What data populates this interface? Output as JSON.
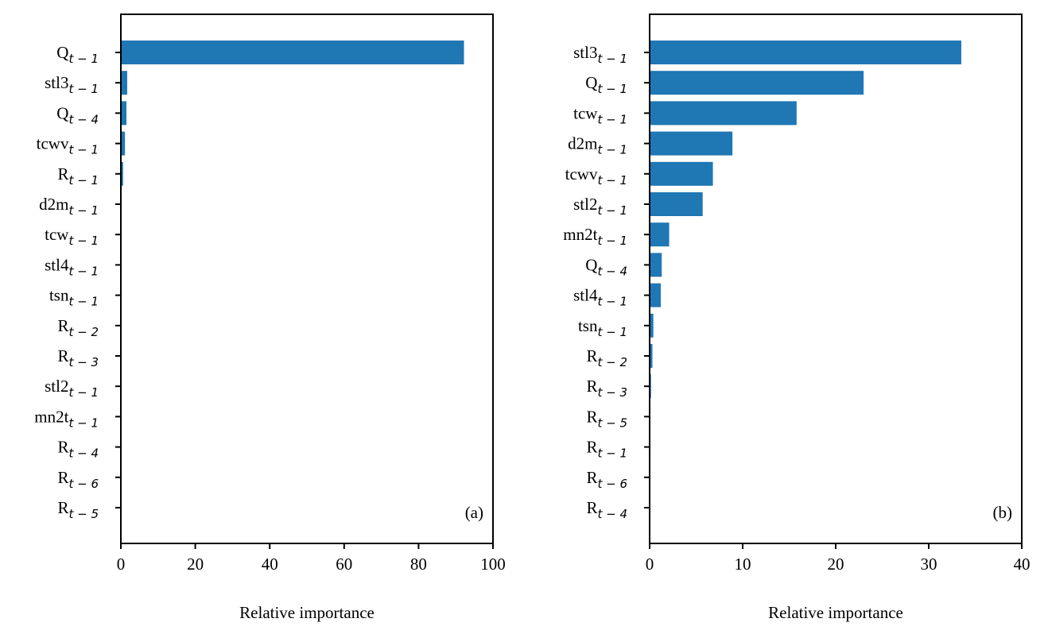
{
  "chart_data": [
    {
      "type": "bar",
      "orientation": "horizontal",
      "color": "#1f77b4",
      "categories": [
        [
          "Q",
          "t − 1"
        ],
        [
          "stl3",
          "t − 1"
        ],
        [
          "Q",
          "t − 4"
        ],
        [
          "tcwv",
          "t − 1"
        ],
        [
          "R",
          "t − 1"
        ],
        [
          "d2m",
          "t − 1"
        ],
        [
          "tcw",
          "t − 1"
        ],
        [
          "stl4",
          "t − 1"
        ],
        [
          "tsn",
          "t − 1"
        ],
        [
          "R",
          "t − 2"
        ],
        [
          "R",
          "t − 3"
        ],
        [
          "stl2",
          "t − 1"
        ],
        [
          "mn2t",
          "t − 1"
        ],
        [
          "R",
          "t − 4"
        ],
        [
          "R",
          "t − 6"
        ],
        [
          "R",
          "t − 5"
        ]
      ],
      "values": [
        92.2,
        1.7,
        1.5,
        1.1,
        0.6,
        0.2,
        0.1,
        0.1,
        0.1,
        0,
        0,
        0,
        0,
        0,
        0,
        0
      ],
      "xlim": [
        0,
        100
      ],
      "xticks": [
        0,
        20,
        40,
        60,
        80,
        100
      ],
      "xlabel": "Relative importance",
      "annotation": "(a)"
    },
    {
      "type": "bar",
      "orientation": "horizontal",
      "color": "#1f77b4",
      "categories": [
        [
          "stl3",
          "t − 1"
        ],
        [
          "Q",
          "t − 1"
        ],
        [
          "tcw",
          "t − 1"
        ],
        [
          "d2m",
          "t − 1"
        ],
        [
          "tcwv",
          "t − 1"
        ],
        [
          "stl2",
          "t − 1"
        ],
        [
          "mn2t",
          "t − 1"
        ],
        [
          "Q",
          "t − 4"
        ],
        [
          "stl4",
          "t − 1"
        ],
        [
          "tsn",
          "t − 1"
        ],
        [
          "R",
          "t − 2"
        ],
        [
          "R",
          "t − 3"
        ],
        [
          "R",
          "t − 5"
        ],
        [
          "R",
          "t − 1"
        ],
        [
          "R",
          "t − 6"
        ],
        [
          "R",
          "t − 4"
        ]
      ],
      "values": [
        33.5,
        23.0,
        15.8,
        8.9,
        6.8,
        5.7,
        2.1,
        1.3,
        1.2,
        0.4,
        0.3,
        0.15,
        0,
        0,
        0,
        0
      ],
      "xlim": [
        0,
        40
      ],
      "xticks": [
        0,
        10,
        20,
        30,
        40
      ],
      "xlabel": "Relative importance",
      "annotation": "(b)"
    }
  ]
}
